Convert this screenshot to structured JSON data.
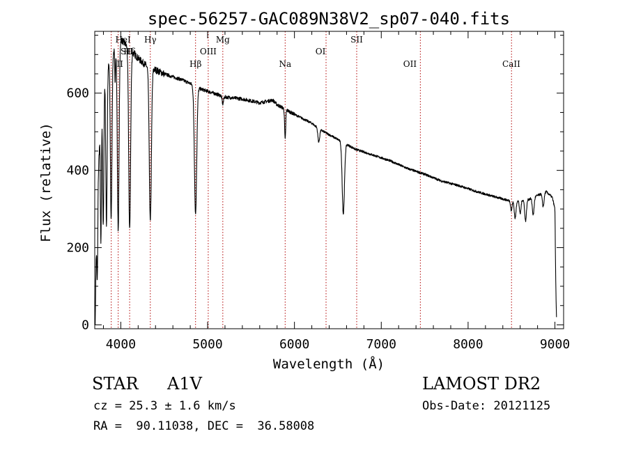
{
  "chart_data": {
    "type": "line",
    "title": "spec-56257-GAC089N38V2_sp07-040.fits",
    "xlabel": "Wavelength (Å)",
    "ylabel": "Flux (relative)",
    "xlim": [
      3700,
      9100
    ],
    "ylim": [
      -10,
      760
    ],
    "xticks": [
      4000,
      5000,
      6000,
      7000,
      8000,
      9000
    ],
    "yticks": [
      0,
      200,
      400,
      600
    ],
    "grid": false,
    "line_color": "#000000",
    "marker_color": "#b00000",
    "continuum": [
      [
        3705,
        0
      ],
      [
        3712,
        120
      ],
      [
        3730,
        330
      ],
      [
        3760,
        500
      ],
      [
        3800,
        640
      ],
      [
        3900,
        700
      ],
      [
        4000,
        740
      ],
      [
        4100,
        715
      ],
      [
        4200,
        690
      ],
      [
        4300,
        670
      ],
      [
        4400,
        660
      ],
      [
        4500,
        650
      ],
      [
        4600,
        642
      ],
      [
        4700,
        635
      ],
      [
        4800,
        625
      ],
      [
        4900,
        612
      ],
      [
        5000,
        605
      ],
      [
        5200,
        590
      ],
      [
        5400,
        585
      ],
      [
        5600,
        575
      ],
      [
        5750,
        582
      ],
      [
        5800,
        570
      ],
      [
        6000,
        545
      ],
      [
        6200,
        522
      ],
      [
        6300,
        505
      ],
      [
        6500,
        480
      ],
      [
        6700,
        455
      ],
      [
        6900,
        440
      ],
      [
        7100,
        425
      ],
      [
        7300,
        405
      ],
      [
        7500,
        390
      ],
      [
        7700,
        372
      ],
      [
        7900,
        360
      ],
      [
        8100,
        345
      ],
      [
        8300,
        332
      ],
      [
        8500,
        320
      ],
      [
        8700,
        325
      ],
      [
        8900,
        345
      ],
      [
        8970,
        330
      ],
      [
        9000,
        300
      ],
      [
        9010,
        100
      ],
      [
        9020,
        0
      ]
    ],
    "absorption_lines": [
      {
        "center": 3730,
        "depth": 210,
        "width": 5
      },
      {
        "center": 3771,
        "depth": 330,
        "width": 6
      },
      {
        "center": 3798,
        "depth": 380,
        "width": 7
      },
      {
        "center": 3835,
        "depth": 400,
        "width": 8
      },
      {
        "center": 3889,
        "depth": 420,
        "width": 9
      },
      {
        "center": 3934,
        "depth": 90,
        "width": 4
      },
      {
        "center": 3970,
        "depth": 480,
        "width": 10
      },
      {
        "center": 4102,
        "depth": 470,
        "width": 11
      },
      {
        "center": 4340,
        "depth": 400,
        "width": 12
      },
      {
        "center": 4861,
        "depth": 330,
        "width": 13
      },
      {
        "center": 5175,
        "depth": 20,
        "width": 8
      },
      {
        "center": 5893,
        "depth": 80,
        "width": 6
      },
      {
        "center": 6280,
        "depth": 35,
        "width": 10
      },
      {
        "center": 6563,
        "depth": 185,
        "width": 13
      },
      {
        "center": 8498,
        "depth": 25,
        "width": 8
      },
      {
        "center": 8542,
        "depth": 45,
        "width": 10
      },
      {
        "center": 8600,
        "depth": 35,
        "width": 9
      },
      {
        "center": 8662,
        "depth": 55,
        "width": 10
      },
      {
        "center": 8750,
        "depth": 45,
        "width": 10
      },
      {
        "center": 8865,
        "depth": 35,
        "width": 10
      }
    ],
    "line_markers": [
      {
        "label": "Hδ",
        "wavelength": 4102,
        "row": 2
      },
      {
        "label": "HeI",
        "wavelength": 4026,
        "row": 1
      },
      {
        "label": "SII",
        "wavelength": 4068,
        "row": 2
      },
      {
        "label": "II",
        "wavelength": 3990,
        "row": 3
      },
      {
        "label": "Hγ",
        "wavelength": 4340,
        "row": 1
      },
      {
        "label": "Mg",
        "wavelength": 5175,
        "row": 1
      },
      {
        "label": "OIII",
        "wavelength": 5007,
        "row": 2
      },
      {
        "label": "Hβ",
        "wavelength": 4861,
        "row": 3
      },
      {
        "label": "Na",
        "wavelength": 5893,
        "row": 3
      },
      {
        "label": "OI",
        "wavelength": 6300,
        "row": 2
      },
      {
        "label": "SII",
        "wavelength": 6717,
        "row": 1
      },
      {
        "label": "OII",
        "wavelength": 7330,
        "row": 3
      },
      {
        "label": "CaII",
        "wavelength": 8498,
        "row": 3
      }
    ],
    "marker_lines": [
      3890,
      3970,
      4102,
      4340,
      4861,
      5007,
      5175,
      5893,
      6364,
      6717,
      7450,
      8500
    ]
  },
  "info": {
    "object_type": "STAR",
    "subclass": "A1V",
    "survey": "LAMOST DR2",
    "cz": "cz = 25.3 ± 1.6 km/s",
    "obs_date": "Obs-Date: 20121125",
    "coords": "RA =  90.11038, DEC =  36.58008"
  }
}
